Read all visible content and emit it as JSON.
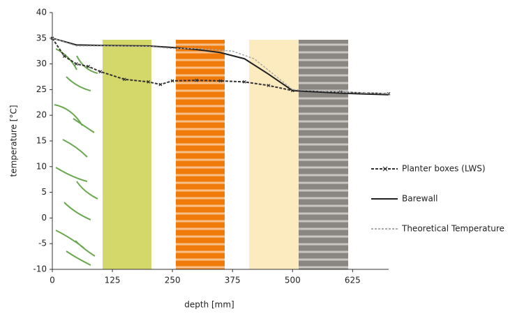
{
  "chart_data": {
    "type": "line",
    "xlabel": "depth [mm]",
    "ylabel": "temperature [°C]",
    "xlim": [
      0,
      700
    ],
    "xticks": [
      0,
      125,
      250,
      375,
      500,
      625
    ],
    "ylim": [
      -10,
      40
    ],
    "yticks": [
      -10,
      -5,
      0,
      5,
      10,
      15,
      20,
      25,
      30,
      35,
      40
    ],
    "series": [
      {
        "name": "Planter boxes (LWS)",
        "color": "#333333",
        "dash": "4 2",
        "marker": "x",
        "x": [
          0,
          25,
          50,
          75,
          100,
          150,
          200,
          225,
          250,
          300,
          350,
          400,
          450,
          500,
          600,
          700
        ],
        "values": [
          35,
          31.5,
          30,
          29.5,
          28.5,
          27,
          26.5,
          26,
          26.7,
          26.8,
          26.7,
          26.5,
          25.8,
          24.8,
          24.5,
          24.2
        ]
      },
      {
        "name": "Barewall",
        "color": "#222222",
        "dash": "none",
        "marker": "none",
        "x": [
          0,
          50,
          100,
          200,
          250,
          300,
          350,
          400,
          450,
          500,
          600,
          700
        ],
        "values": [
          35,
          33.7,
          33.6,
          33.5,
          33.2,
          32.8,
          32.2,
          31,
          28,
          24.8,
          24.3,
          24
        ]
      },
      {
        "name": "Theoretical Temperature",
        "color": "#aaaaaa",
        "dash": "3 2",
        "marker": "none",
        "x": [
          0,
          50,
          100,
          200,
          250,
          300,
          375,
          420,
          500,
          600,
          700
        ],
        "values": [
          35,
          33.5,
          33.5,
          33.4,
          33,
          33,
          32.5,
          31,
          25,
          24.5,
          24.2
        ]
      }
    ]
  }
}
